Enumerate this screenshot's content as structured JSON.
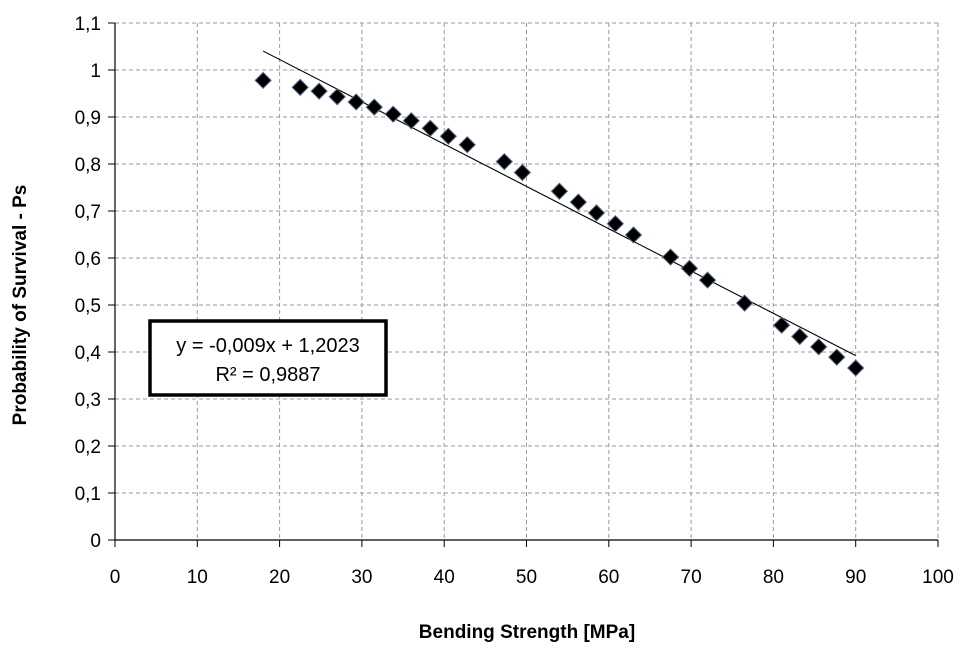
{
  "chart_data": {
    "type": "scatter",
    "title": "",
    "xlabel": "Bending  Strength [MPa]",
    "ylabel": "Probability of Survival - Ps",
    "xlim": [
      0,
      100
    ],
    "ylim": [
      0,
      1.1
    ],
    "x_ticks": [
      0,
      10,
      20,
      30,
      40,
      50,
      60,
      70,
      80,
      90,
      100
    ],
    "x_tick_labels": [
      "0",
      "10",
      "20",
      "30",
      "40",
      "50",
      "60",
      "70",
      "80",
      "90",
      "100"
    ],
    "y_ticks": [
      0,
      0.1,
      0.2,
      0.3,
      0.4,
      0.5,
      0.6,
      0.7,
      0.8,
      0.9,
      1.0,
      1.1
    ],
    "y_tick_labels": [
      "0",
      "0,1",
      "0,2",
      "0,3",
      "0,4",
      "0,5",
      "0,6",
      "0,7",
      "0,8",
      "0,9",
      "1",
      "1,1"
    ],
    "grid": true,
    "legend": "none",
    "marker": "diamond",
    "marker_color": "#000000",
    "trendline": {
      "type": "linear",
      "slope": -0.009,
      "intercept": 1.2023,
      "x_range": [
        18,
        90
      ],
      "equation_label": "y = -0,009x + 1,2023",
      "r2_label": "R² = 0,9887"
    },
    "series": [
      {
        "points": [
          [
            18,
            0.978
          ],
          [
            22.5,
            0.963
          ],
          [
            24.8,
            0.955
          ],
          [
            27,
            0.943
          ],
          [
            29.3,
            0.932
          ],
          [
            31.5,
            0.921
          ],
          [
            33.8,
            0.906
          ],
          [
            36,
            0.892
          ],
          [
            38.3,
            0.876
          ],
          [
            40.5,
            0.859
          ],
          [
            42.8,
            0.841
          ],
          [
            47.3,
            0.805
          ],
          [
            49.5,
            0.782
          ],
          [
            54,
            0.742
          ],
          [
            56.3,
            0.719
          ],
          [
            58.5,
            0.696
          ],
          [
            60.8,
            0.673
          ],
          [
            63,
            0.649
          ],
          [
            67.5,
            0.602
          ],
          [
            69.8,
            0.578
          ],
          [
            72,
            0.553
          ],
          [
            76.5,
            0.504
          ],
          [
            81,
            0.457
          ],
          [
            83.2,
            0.433
          ],
          [
            85.5,
            0.411
          ],
          [
            87.7,
            0.389
          ],
          [
            90,
            0.366
          ]
        ]
      }
    ]
  }
}
